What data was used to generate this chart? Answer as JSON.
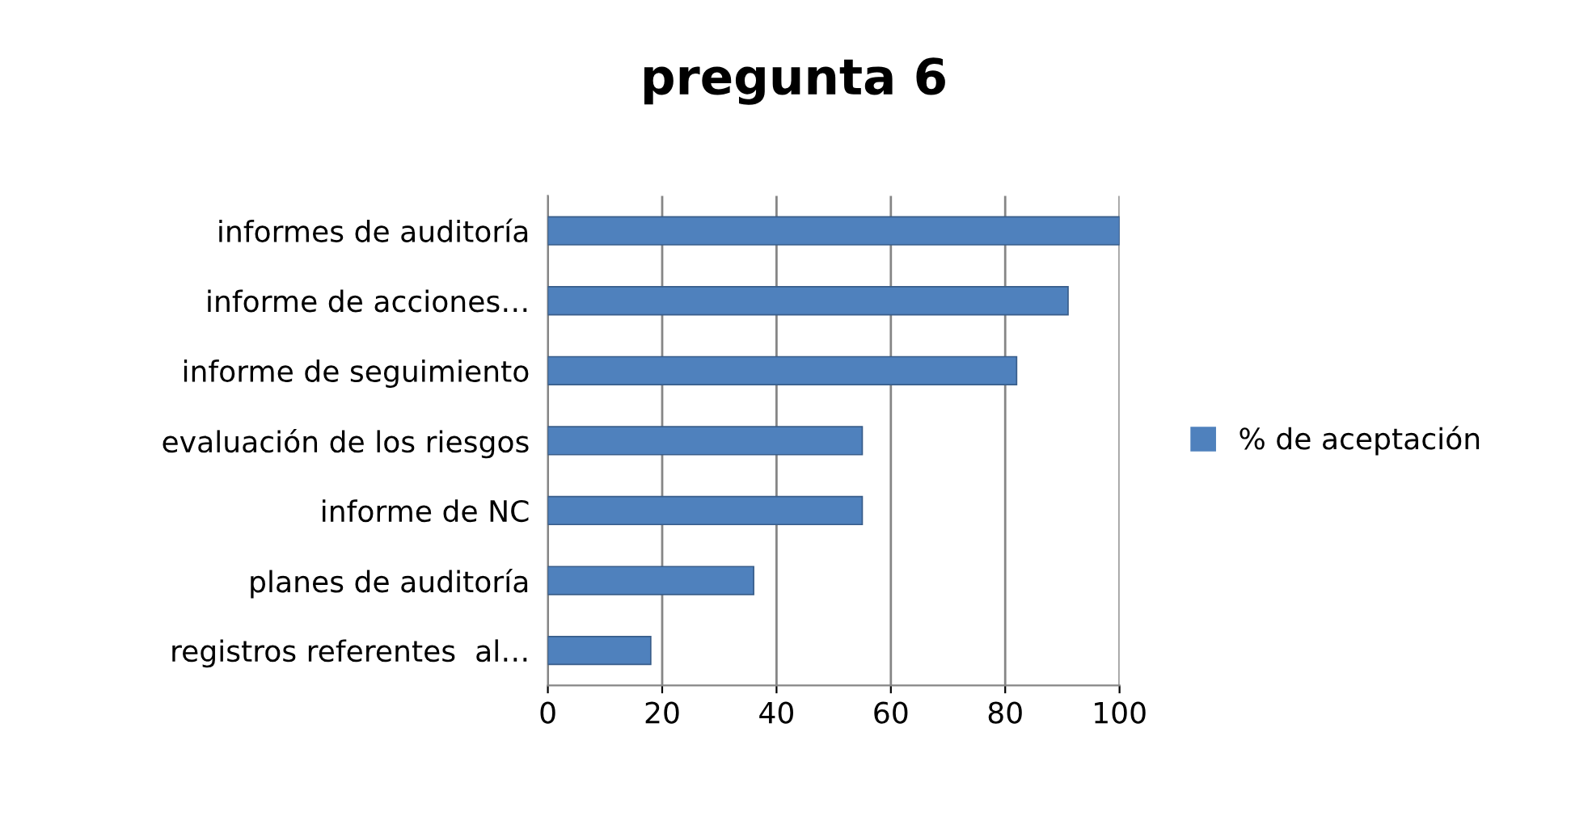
{
  "chart_data": {
    "type": "bar",
    "orientation": "horizontal",
    "title": "pregunta 6",
    "categories": [
      "informes de auditoría",
      "informe de acciones…",
      "informe de seguimiento",
      "evaluación de los riesgos",
      "informe de NC",
      "planes de auditoría",
      "registros referentes  al…"
    ],
    "series": [
      {
        "name": "% de aceptación",
        "color": "#4f81bd",
        "values": [
          100,
          91,
          82,
          55,
          55,
          36,
          18
        ]
      }
    ],
    "xlim": [
      0,
      100
    ],
    "xticks": [
      0,
      20,
      40,
      60,
      80,
      100
    ],
    "grid": "x",
    "legend": "right"
  }
}
